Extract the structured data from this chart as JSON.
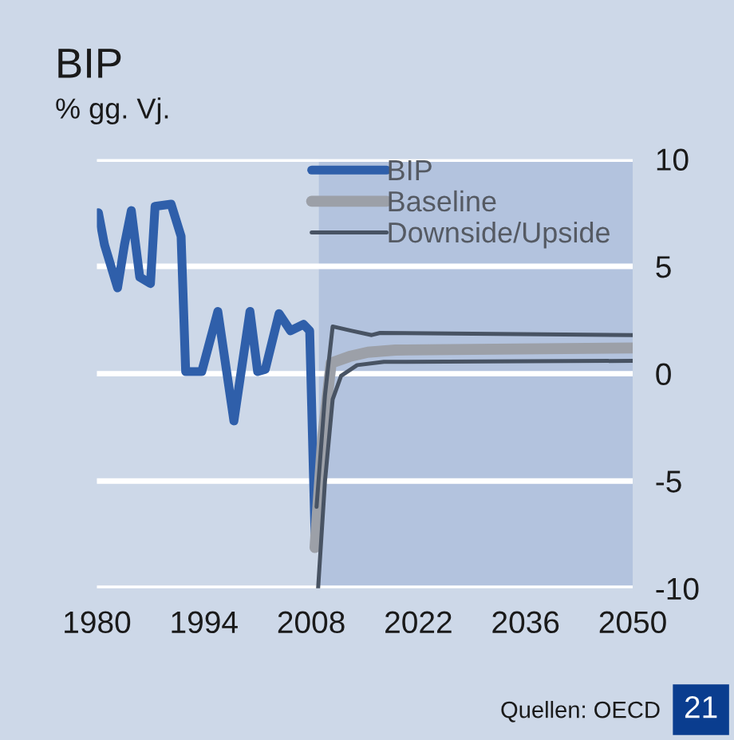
{
  "chart_data": {
    "type": "line",
    "title": "BIP",
    "subtitle": "% gg. Vj.",
    "xlim": [
      1980,
      2050
    ],
    "xticks": [
      1980,
      1994,
      2008,
      2022,
      2036,
      2050
    ],
    "ylim": [
      -10,
      10
    ],
    "yticks": [
      -10,
      -5,
      0,
      5,
      10
    ],
    "grid": "y",
    "legend": "top",
    "marker": "none",
    "line_style": "solid",
    "bands": [
      {
        "axis": "x",
        "from": 2009,
        "to": 2050,
        "color": "#b3c3de"
      }
    ],
    "annotations": [
      "Quellen: OECD",
      "21"
    ],
    "series": [
      {
        "name": "BIP",
        "color": "#2f5faa",
        "x": [
          1980.2,
          1981,
          1982.7,
          1983.6,
          1984.5,
          1985.6,
          1987,
          1987.6,
          1989.7,
          1991,
          1991.6,
          1993.7,
          1995.8,
          1997.9,
          2000,
          2001,
          2002,
          2003.8,
          2005.3,
          2007,
          2007.8,
          2008.5
        ],
        "values": [
          7.5,
          6.0,
          4.0,
          6.0,
          7.6,
          4.5,
          4.2,
          7.8,
          7.9,
          6.4,
          0.1,
          0.1,
          2.9,
          -2.2,
          2.9,
          0.1,
          0.2,
          2.8,
          2.0,
          2.3,
          2.0,
          -7.5
        ]
      },
      {
        "name": "Baseline",
        "color": "#9ca0a8",
        "x": [
          2008.5,
          2009.5,
          2010.6,
          2013,
          2015.4,
          2019,
          2050
        ],
        "values": [
          -8.1,
          -3.0,
          0.5,
          0.8,
          1.0,
          1.1,
          1.2
        ]
      },
      {
        "name": "Downside/Upside",
        "color": "#485363",
        "x": [
          2008.9,
          2009.8,
          2010.8,
          2011.9,
          2014,
          2017.5,
          2050
        ],
        "values": [
          -10,
          -5.0,
          -1.2,
          -0.1,
          0.4,
          0.55,
          0.6
        ]
      },
      {
        "color": "#485363",
        "x": [
          2008.7,
          2009.8,
          2010.8,
          2013.3,
          2015.9,
          2017,
          2050
        ],
        "values": [
          -6.2,
          -1.0,
          2.2,
          2.0,
          1.8,
          1.9,
          1.8
        ]
      }
    ]
  }
}
